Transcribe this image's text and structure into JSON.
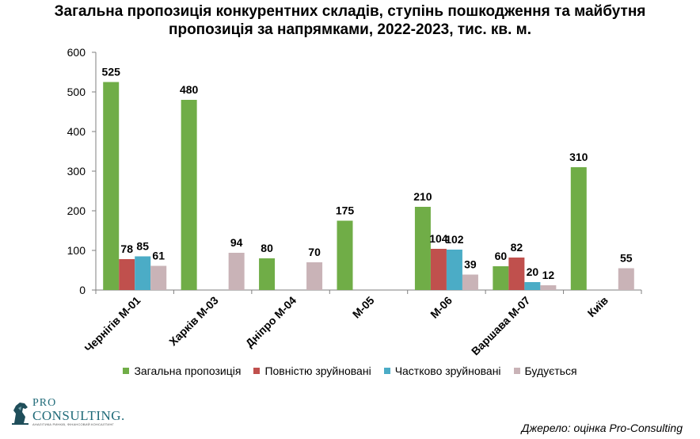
{
  "chart_data": {
    "type": "bar",
    "title_lines": [
      "Загальна пропозиція конкурентних складів, ступінь пошкодження та майбутня",
      "пропозиція за напрямками, 2022-2023, тис. кв. м."
    ],
    "categories": [
      "Чернігів М-01",
      "Харків М-03",
      "Дніпро М-04",
      "М-05",
      "М-06",
      "Варшава М-07",
      "Київ"
    ],
    "series": [
      {
        "name": "Загальна пропозиція",
        "color": "#70ad47",
        "values": [
          525,
          480,
          80,
          175,
          210,
          60,
          310
        ]
      },
      {
        "name": "Повністю зруйновані",
        "color": "#c0504d",
        "values": [
          78,
          null,
          null,
          null,
          104,
          82,
          null
        ]
      },
      {
        "name": "Частково зруйновані",
        "color": "#4bacc6",
        "values": [
          85,
          null,
          null,
          null,
          102,
          20,
          null
        ]
      },
      {
        "name": "Будується",
        "color": "#c9b3b7",
        "values": [
          61,
          94,
          70,
          null,
          39,
          12,
          55
        ]
      }
    ],
    "ylim": [
      0,
      600
    ],
    "yticks": [
      0,
      100,
      200,
      300,
      400,
      500,
      600
    ],
    "grid": false,
    "legend_position": "bottom"
  },
  "footer": {
    "source": "Джерело: оцінка Pro-Consulting",
    "logo_line1": "PRO",
    "logo_line2": "CONSULTING.",
    "logo_line3": "АНАЛІТИКА РИНКІВ, ФІНАНСОВИЙ КОНСАЛТИНГ"
  }
}
